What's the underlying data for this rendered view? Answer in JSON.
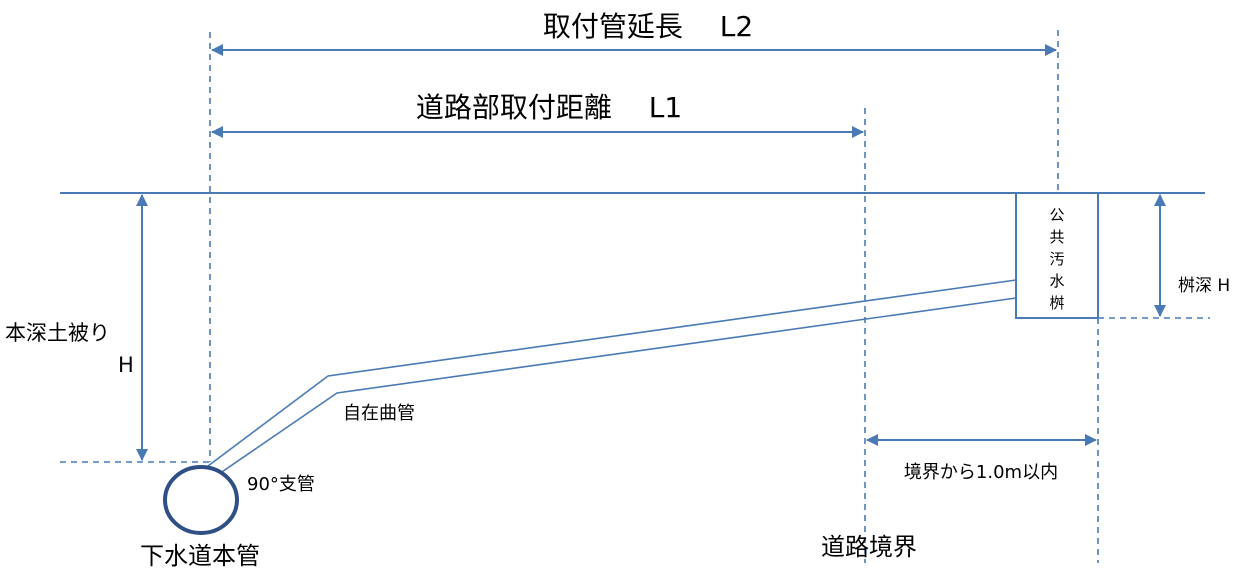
{
  "labels": {
    "l2_title": "取付管延長　 L2",
    "l1_title": "道路部取付距離　 L1",
    "cover_depth_line1": "本深土被り",
    "cover_depth_line2": "H",
    "manhole_chars": [
      "公",
      "共",
      "汚",
      "水",
      "桝"
    ],
    "manhole_depth": "桝深 H",
    "flexible_bend": "自在曲管",
    "branch_90": "90°支管",
    "main_sewer": "下水道本管",
    "road_boundary": "道路境界",
    "within_boundary": "境界から1.0m以内"
  },
  "colors": {
    "line": "#4a7ab5",
    "pipe_circle": "#2f4f86",
    "text": "#000000"
  }
}
